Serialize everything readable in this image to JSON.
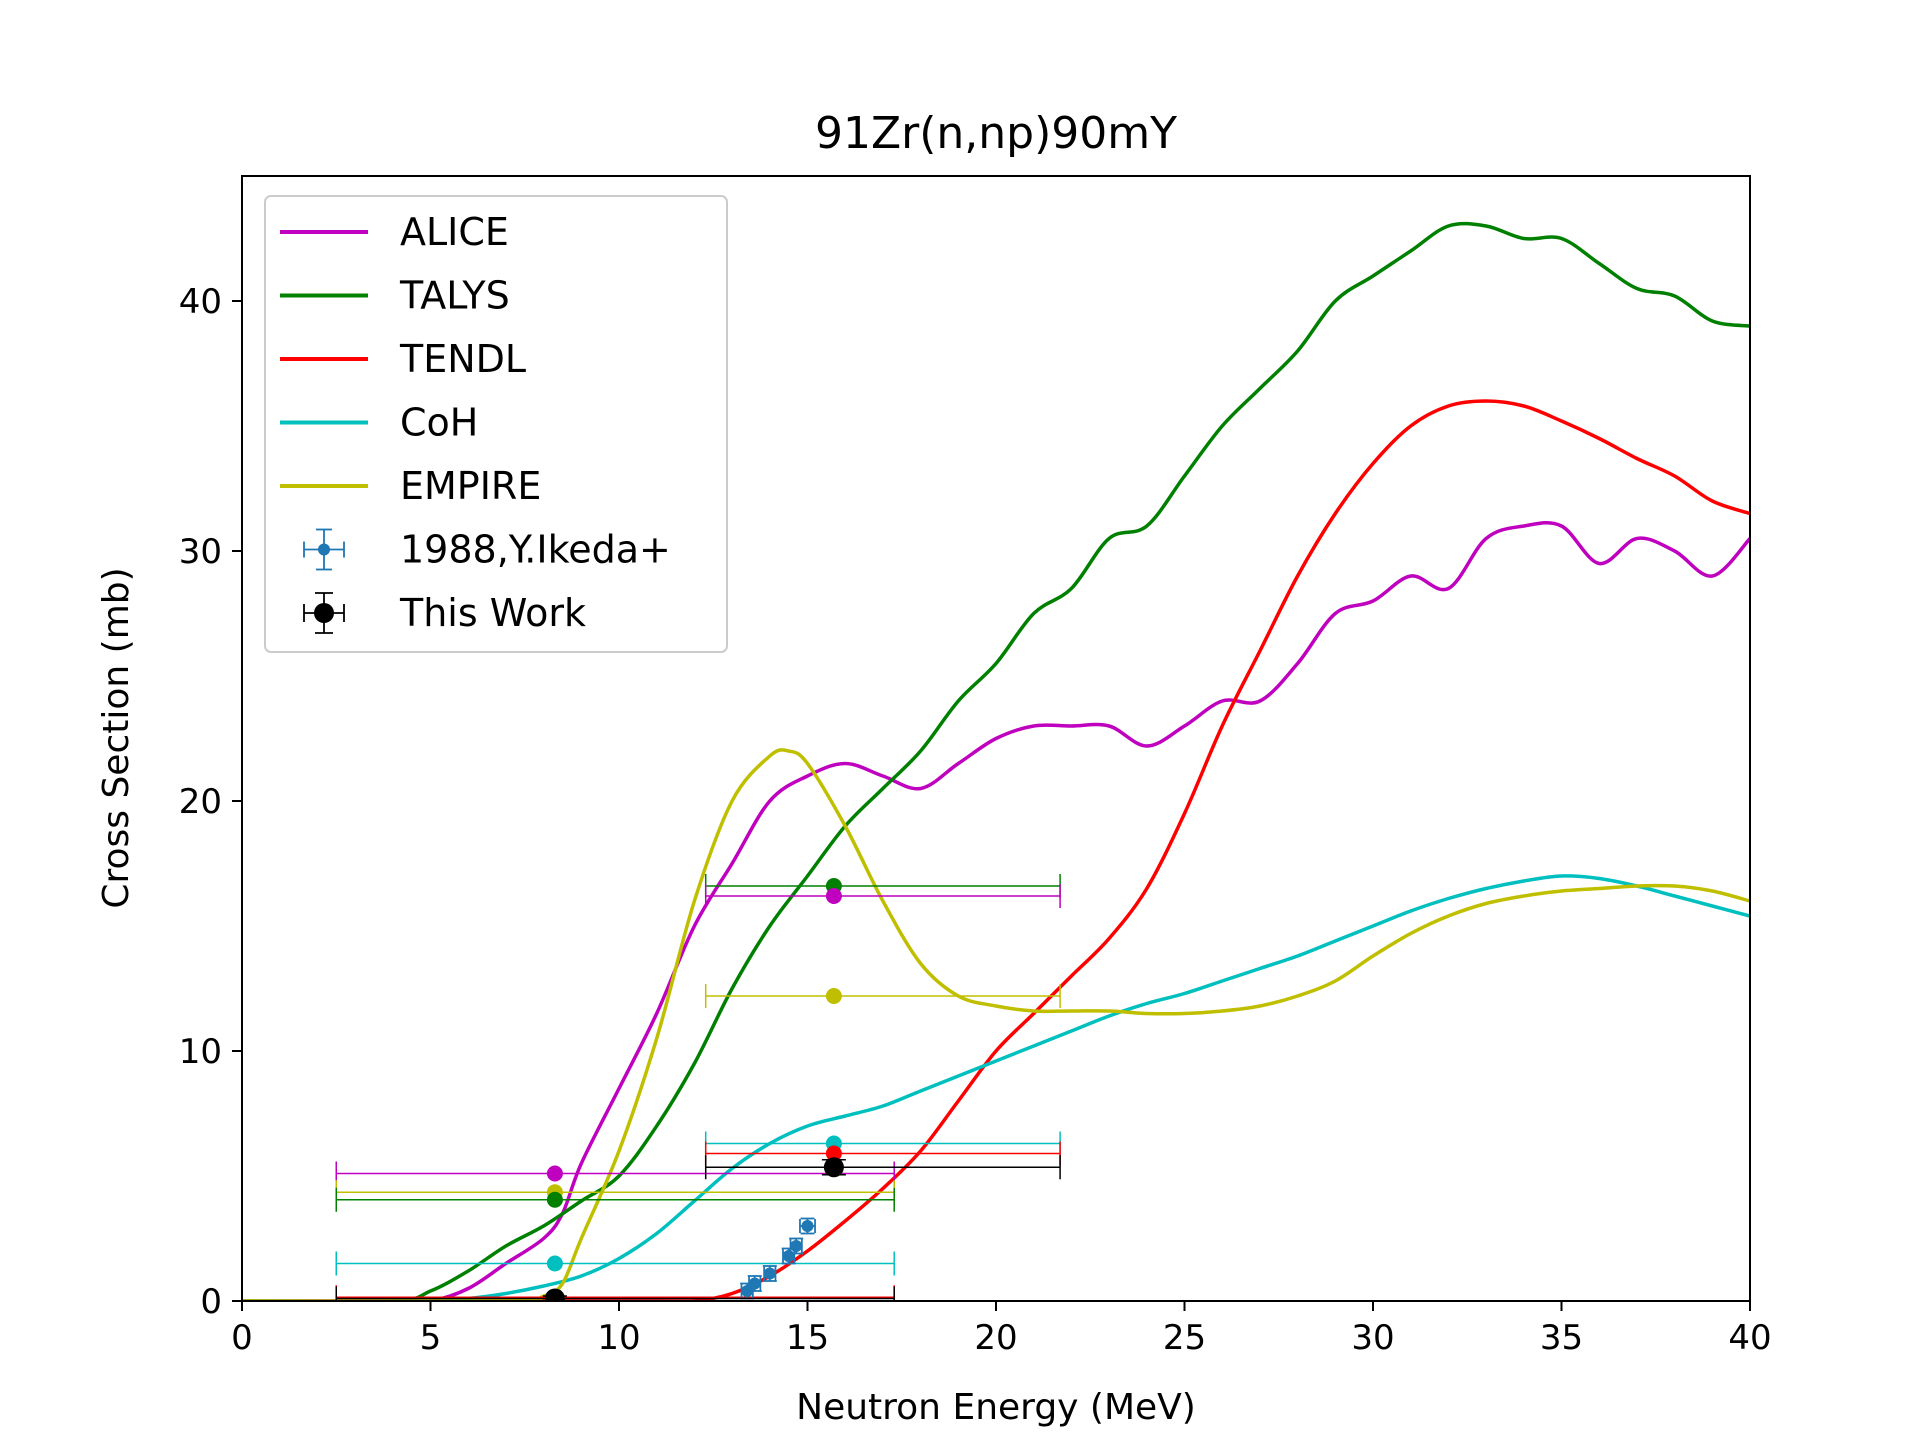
{
  "chart_data": {
    "type": "line",
    "title": "91Zr(n,np)90mY",
    "xlabel": "Neutron Energy (MeV)",
    "ylabel": "Cross Section (mb)",
    "xlim": [
      0,
      40
    ],
    "ylim": [
      0,
      45
    ],
    "xticks": [
      0,
      5,
      10,
      15,
      20,
      25,
      30,
      35,
      40
    ],
    "yticks": [
      0,
      10,
      20,
      30,
      40
    ],
    "grid": false,
    "legend_position": "top-left",
    "series": [
      {
        "name": "ALICE",
        "color": "#bf00bf",
        "x": [
          0,
          4,
          5,
          6,
          7,
          8,
          8.5,
          9,
          10,
          11,
          12,
          13,
          14,
          15,
          16,
          17,
          18,
          19,
          20,
          21,
          22,
          23,
          24,
          25,
          26,
          27,
          28,
          29,
          30,
          31,
          32,
          33,
          34,
          35,
          36,
          37,
          38,
          39,
          40
        ],
        "y": [
          0,
          0,
          0,
          0.5,
          1.5,
          2.5,
          3.5,
          5.5,
          8.5,
          11.5,
          15,
          17.5,
          20,
          21,
          21.5,
          21,
          20.5,
          21.5,
          22.5,
          23,
          23,
          23,
          22.2,
          23,
          24,
          24,
          25.5,
          27.5,
          28,
          29,
          28.5,
          30.5,
          31,
          31,
          29.5,
          30.5,
          30,
          29,
          30.5
        ]
      },
      {
        "name": "TALYS",
        "color": "#008000",
        "x": [
          0,
          4,
          5,
          6,
          7,
          8,
          9,
          10,
          11,
          12,
          13,
          14,
          15,
          16,
          17,
          18,
          19,
          20,
          21,
          22,
          23,
          24,
          25,
          26,
          27,
          28,
          29,
          30,
          31,
          32,
          33,
          34,
          35,
          36,
          37,
          38,
          39,
          40
        ],
        "y": [
          0,
          0,
          0.4,
          1.2,
          2.2,
          3,
          4,
          5,
          7,
          9.5,
          12.5,
          15,
          17,
          19,
          20.5,
          22,
          24,
          25.5,
          27.5,
          28.5,
          30.5,
          31,
          33,
          35,
          36.5,
          38,
          40,
          41,
          42,
          43,
          43,
          42.5,
          42.5,
          41.5,
          40.5,
          40.2,
          39.2,
          39
        ]
      },
      {
        "name": "TENDL",
        "color": "#ff0000",
        "x": [
          0,
          11,
          12,
          13,
          14,
          15,
          16,
          17,
          18,
          19,
          20,
          21,
          22,
          23,
          24,
          25,
          26,
          27,
          28,
          29,
          30,
          31,
          32,
          33,
          34,
          35,
          36,
          37,
          38,
          39,
          40
        ],
        "y": [
          0,
          0,
          0,
          0.3,
          1,
          2,
          3.2,
          4.5,
          6,
          8,
          10,
          11.5,
          13,
          14.5,
          16.5,
          19.5,
          23,
          26,
          29,
          31.5,
          33.5,
          35,
          35.8,
          36,
          35.8,
          35.2,
          34.5,
          33.7,
          33,
          32,
          31.5
        ]
      },
      {
        "name": "CoH",
        "color": "#00bfbf",
        "x": [
          0,
          5,
          6,
          7,
          8,
          9,
          10,
          11,
          12,
          13,
          14,
          15,
          16,
          17,
          18,
          19,
          20,
          21,
          22,
          23,
          24,
          25,
          26,
          27,
          28,
          29,
          30,
          31,
          32,
          33,
          34,
          35,
          36,
          37,
          38,
          39,
          40
        ],
        "y": [
          0,
          0,
          0.1,
          0.3,
          0.6,
          1,
          1.7,
          2.7,
          4,
          5.3,
          6.3,
          7,
          7.4,
          7.8,
          8.4,
          9,
          9.6,
          10.2,
          10.8,
          11.4,
          11.9,
          12.3,
          12.8,
          13.3,
          13.8,
          14.4,
          15,
          15.6,
          16.1,
          16.5,
          16.8,
          17,
          16.9,
          16.6,
          16.2,
          15.8,
          15.4
        ]
      },
      {
        "name": "EMPIRE",
        "color": "#bfbf00",
        "x": [
          0,
          7,
          8,
          8.5,
          9,
          10,
          11,
          12,
          13,
          14,
          14.5,
          15,
          16,
          17,
          18,
          19,
          20,
          21,
          22,
          23,
          24,
          25,
          26,
          27,
          28,
          29,
          30,
          31,
          32,
          33,
          34,
          35,
          36,
          37,
          38,
          39,
          40
        ],
        "y": [
          0,
          0,
          0.2,
          0.7,
          2.5,
          6,
          10.5,
          16,
          20,
          21.8,
          22,
          21.5,
          19,
          16,
          13.5,
          12.2,
          11.8,
          11.6,
          11.6,
          11.6,
          11.5,
          11.5,
          11.6,
          11.8,
          12.2,
          12.8,
          13.8,
          14.7,
          15.4,
          15.9,
          16.2,
          16.4,
          16.5,
          16.6,
          16.6,
          16.4,
          16
        ]
      }
    ],
    "averaged_points": [
      {
        "color": "#bf00bf",
        "x": 8.3,
        "xmin": 2.5,
        "xmax": 17.3,
        "y": 5.1
      },
      {
        "color": "#bfbf00",
        "x": 8.3,
        "xmin": 2.5,
        "xmax": 17.3,
        "y": 4.35
      },
      {
        "color": "#008000",
        "x": 8.3,
        "xmin": 2.5,
        "xmax": 17.3,
        "y": 4.05
      },
      {
        "color": "#00bfbf",
        "x": 8.3,
        "xmin": 2.5,
        "xmax": 17.3,
        "y": 1.5
      },
      {
        "color": "#ff0000",
        "x": 8.3,
        "xmin": 2.5,
        "xmax": 17.3,
        "y": 0.15
      },
      {
        "color": "#008000",
        "x": 15.7,
        "xmin": 12.3,
        "xmax": 21.7,
        "y": 16.6
      },
      {
        "color": "#bf00bf",
        "x": 15.7,
        "xmin": 12.3,
        "xmax": 21.7,
        "y": 16.2
      },
      {
        "color": "#bfbf00",
        "x": 15.7,
        "xmin": 12.3,
        "xmax": 21.7,
        "y": 12.2
      },
      {
        "color": "#00bfbf",
        "x": 15.7,
        "xmin": 12.3,
        "xmax": 21.7,
        "y": 6.3
      },
      {
        "color": "#ff0000",
        "x": 15.7,
        "xmin": 12.3,
        "xmax": 21.7,
        "y": 5.9
      }
    ],
    "experimental": [
      {
        "name": "1988,Y.Ikeda+",
        "color": "#1f77b4",
        "points": [
          {
            "x": 13.4,
            "y": 0.4,
            "xerr": 0.15,
            "yerr": 0.3
          },
          {
            "x": 13.6,
            "y": 0.7,
            "xerr": 0.15,
            "yerr": 0.3
          },
          {
            "x": 14.0,
            "y": 1.1,
            "xerr": 0.15,
            "yerr": 0.3
          },
          {
            "x": 14.5,
            "y": 1.8,
            "xerr": 0.15,
            "yerr": 0.3
          },
          {
            "x": 14.7,
            "y": 2.2,
            "xerr": 0.15,
            "yerr": 0.3
          },
          {
            "x": 15.0,
            "y": 3.0,
            "xerr": 0.2,
            "yerr": 0.3
          }
        ]
      },
      {
        "name": "This Work",
        "color": "#000000",
        "points": [
          {
            "x": 8.3,
            "y": 0.1,
            "xmin": 2.5,
            "xmax": 17.3,
            "yerr": 0.1
          },
          {
            "x": 15.7,
            "y": 5.35,
            "xmin": 12.3,
            "xmax": 21.7,
            "yerr": 0.3
          }
        ]
      }
    ]
  }
}
